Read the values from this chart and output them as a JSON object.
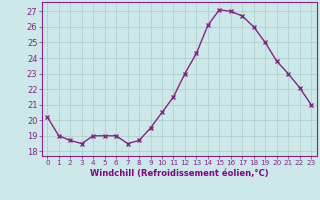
{
  "x": [
    0,
    1,
    2,
    3,
    4,
    5,
    6,
    7,
    8,
    9,
    10,
    11,
    12,
    13,
    14,
    15,
    16,
    17,
    18,
    19,
    20,
    21,
    22,
    23
  ],
  "y": [
    20.2,
    19.0,
    18.7,
    18.5,
    19.0,
    19.0,
    19.0,
    18.5,
    18.7,
    19.5,
    20.5,
    21.5,
    23.0,
    24.3,
    26.1,
    27.1,
    27.0,
    26.7,
    26.0,
    25.0,
    23.8,
    23.0,
    22.1,
    21.0
  ],
  "line_color": "#882288",
  "marker": "x",
  "marker_size": 3,
  "marker_lw": 1.0,
  "line_width": 1.0,
  "bg_color": "#cce8e8",
  "grid_color": "#aacccc",
  "xlabel": "Windchill (Refroidissement éolien,°C)",
  "xlabel_color": "#880088",
  "xlabel_fontsize": 6.0,
  "ylabel_ticks": [
    18,
    19,
    20,
    21,
    22,
    23,
    24,
    25,
    26,
    27
  ],
  "ytick_fontsize": 6.0,
  "xtick_fontsize": 5.2,
  "ylim": [
    17.7,
    27.6
  ],
  "xlim": [
    -0.5,
    23.5
  ]
}
